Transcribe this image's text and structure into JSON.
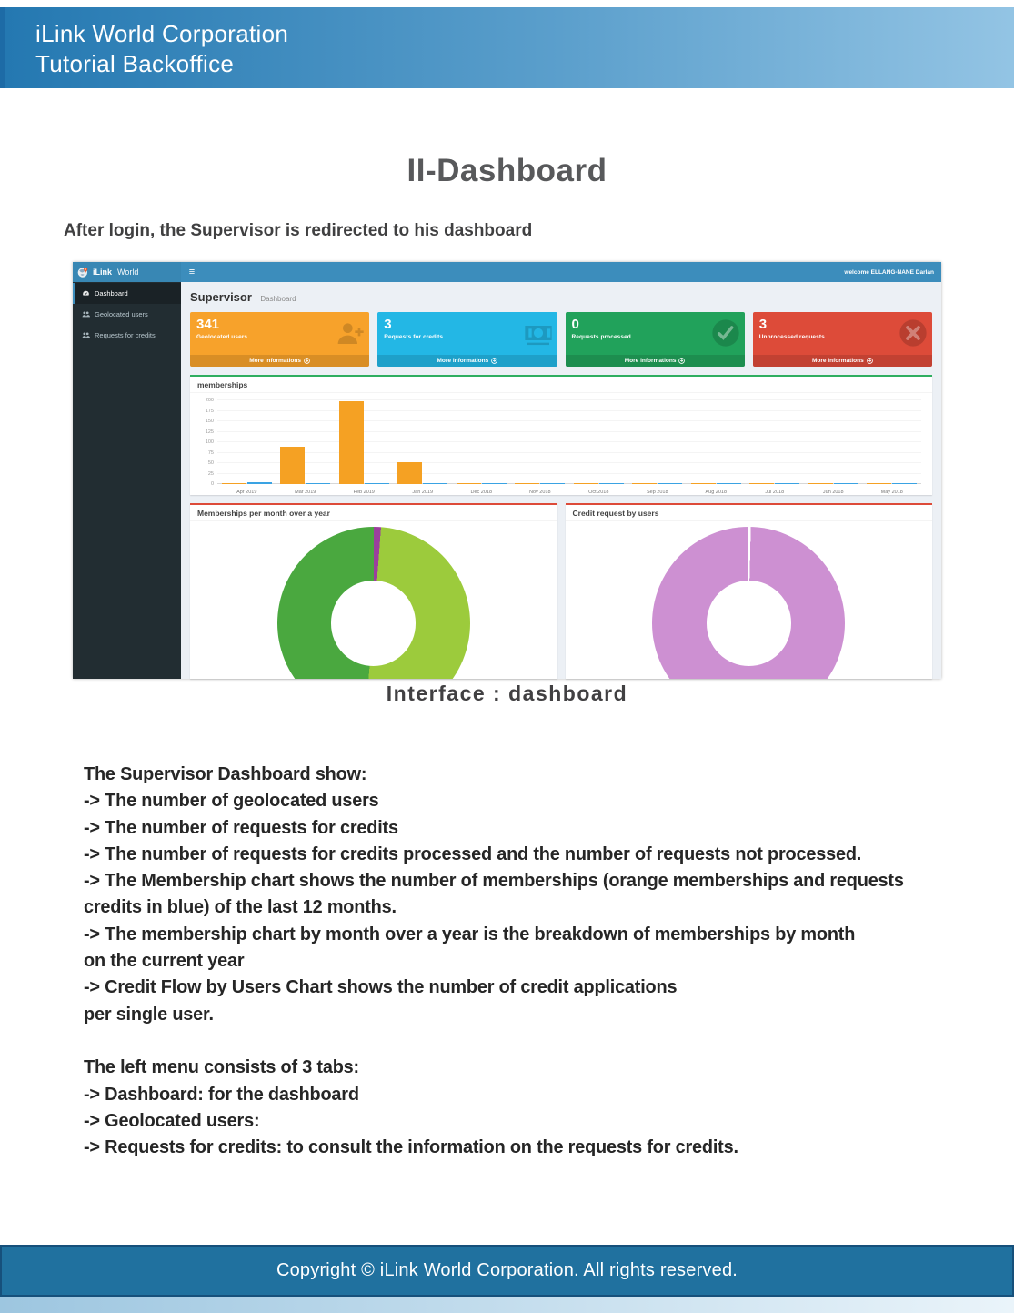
{
  "document": {
    "header": {
      "line1": "iLink World Corporation",
      "line2": "Tutorial Backoffice"
    },
    "title": "II-Dashboard",
    "intro": "After login, the Supervisor is redirected to his dashboard",
    "caption": "Interface : dashboard",
    "body_lines": [
      "The Supervisor Dashboard show:",
      "-> The number of geolocated users",
      "-> The number of requests for credits",
      "-> The number of requests for credits processed and the number of requests not processed.",
      "-> The Membership chart shows the number of memberships (orange memberships and requests",
      "credits in blue) of the last 12 months.",
      "-> The membership chart by month over a year is the breakdown of memberships by month",
      "on the current year",
      "-> Credit Flow by Users Chart shows the number of credit applications",
      "per single user.",
      "",
      "The left menu consists of 3 tabs:",
      "-> Dashboard: for the dashboard",
      "-> Geolocated users:",
      "-> Requests for credits: to consult the information on the requests for credits."
    ],
    "footer": "Copyright © iLink World Corporation. All rights reserved."
  },
  "dashboard": {
    "navbar": {
      "brand_bold": "iLink",
      "brand_light": "World",
      "menu_glyph": "≡",
      "welcome": "welcome ELLANG-NANE Darlan"
    },
    "sidebar": {
      "items": [
        {
          "label": "Dashboard",
          "icon": "dashboard-icon",
          "active": true
        },
        {
          "label": "Geolocated users",
          "icon": "users-icon",
          "active": false
        },
        {
          "label": "Requests for credits",
          "icon": "users-icon",
          "active": false
        }
      ]
    },
    "page_header": {
      "title": "Supervisor",
      "subtitle": "Dashboard"
    },
    "cards": [
      {
        "value": "341",
        "label": "Geolocated users",
        "more_label": "More informations",
        "color": "#f7a22b",
        "icon": "user-plus-icon"
      },
      {
        "value": "3",
        "label": "Requests for credits",
        "more_label": "More informations",
        "color": "#23b7e5",
        "icon": "money-icon"
      },
      {
        "value": "0",
        "label": "Requests processed",
        "more_label": "More informations",
        "color": "#21a25b",
        "icon": "check-circle-icon"
      },
      {
        "value": "3",
        "label": "Unprocessed requests",
        "more_label": "More informations",
        "color": "#dd4b39",
        "icon": "x-circle-icon"
      }
    ]
  },
  "chart_data": [
    {
      "type": "bar",
      "title": "memberships",
      "categories": [
        "Apr 2019",
        "Mar 2019",
        "Feb 2019",
        "Jan 2019",
        "Dec 2018",
        "Nov 2018",
        "Oct 2018",
        "Sep 2018",
        "Aug 2018",
        "Jul 2018",
        "Jun 2018",
        "May 2018"
      ],
      "series": [
        {
          "name": "memberships",
          "color": "#f5a123",
          "values": [
            1,
            90,
            198,
            52,
            2,
            3,
            2,
            2,
            2,
            2,
            2,
            3
          ]
        },
        {
          "name": "requests-credits",
          "color": "#3aa3e3",
          "values": [
            4,
            2,
            2,
            2,
            2,
            1,
            2,
            2,
            2,
            2,
            2,
            2
          ]
        }
      ],
      "ylim": [
        0,
        200
      ],
      "ytick_step": 25,
      "grid": true,
      "legend": "none"
    },
    {
      "type": "pie",
      "title": "Memberships per month over a year",
      "donut": true,
      "segments": [
        {
          "label": "purple-sliver",
          "color": "#9b3f9d",
          "percent": 1.2
        },
        {
          "label": "light-green",
          "color": "#9ccb3c",
          "percent": 50.3
        },
        {
          "label": "dark-green",
          "color": "#4aa83f",
          "percent": 48.5
        }
      ]
    },
    {
      "type": "pie",
      "title": "Credit request by users",
      "donut": true,
      "segments": [
        {
          "label": "divider",
          "color": "#ffffff",
          "percent": 0.4
        },
        {
          "label": "orchid",
          "color": "#cd90d2",
          "percent": 99.6
        }
      ]
    }
  ]
}
